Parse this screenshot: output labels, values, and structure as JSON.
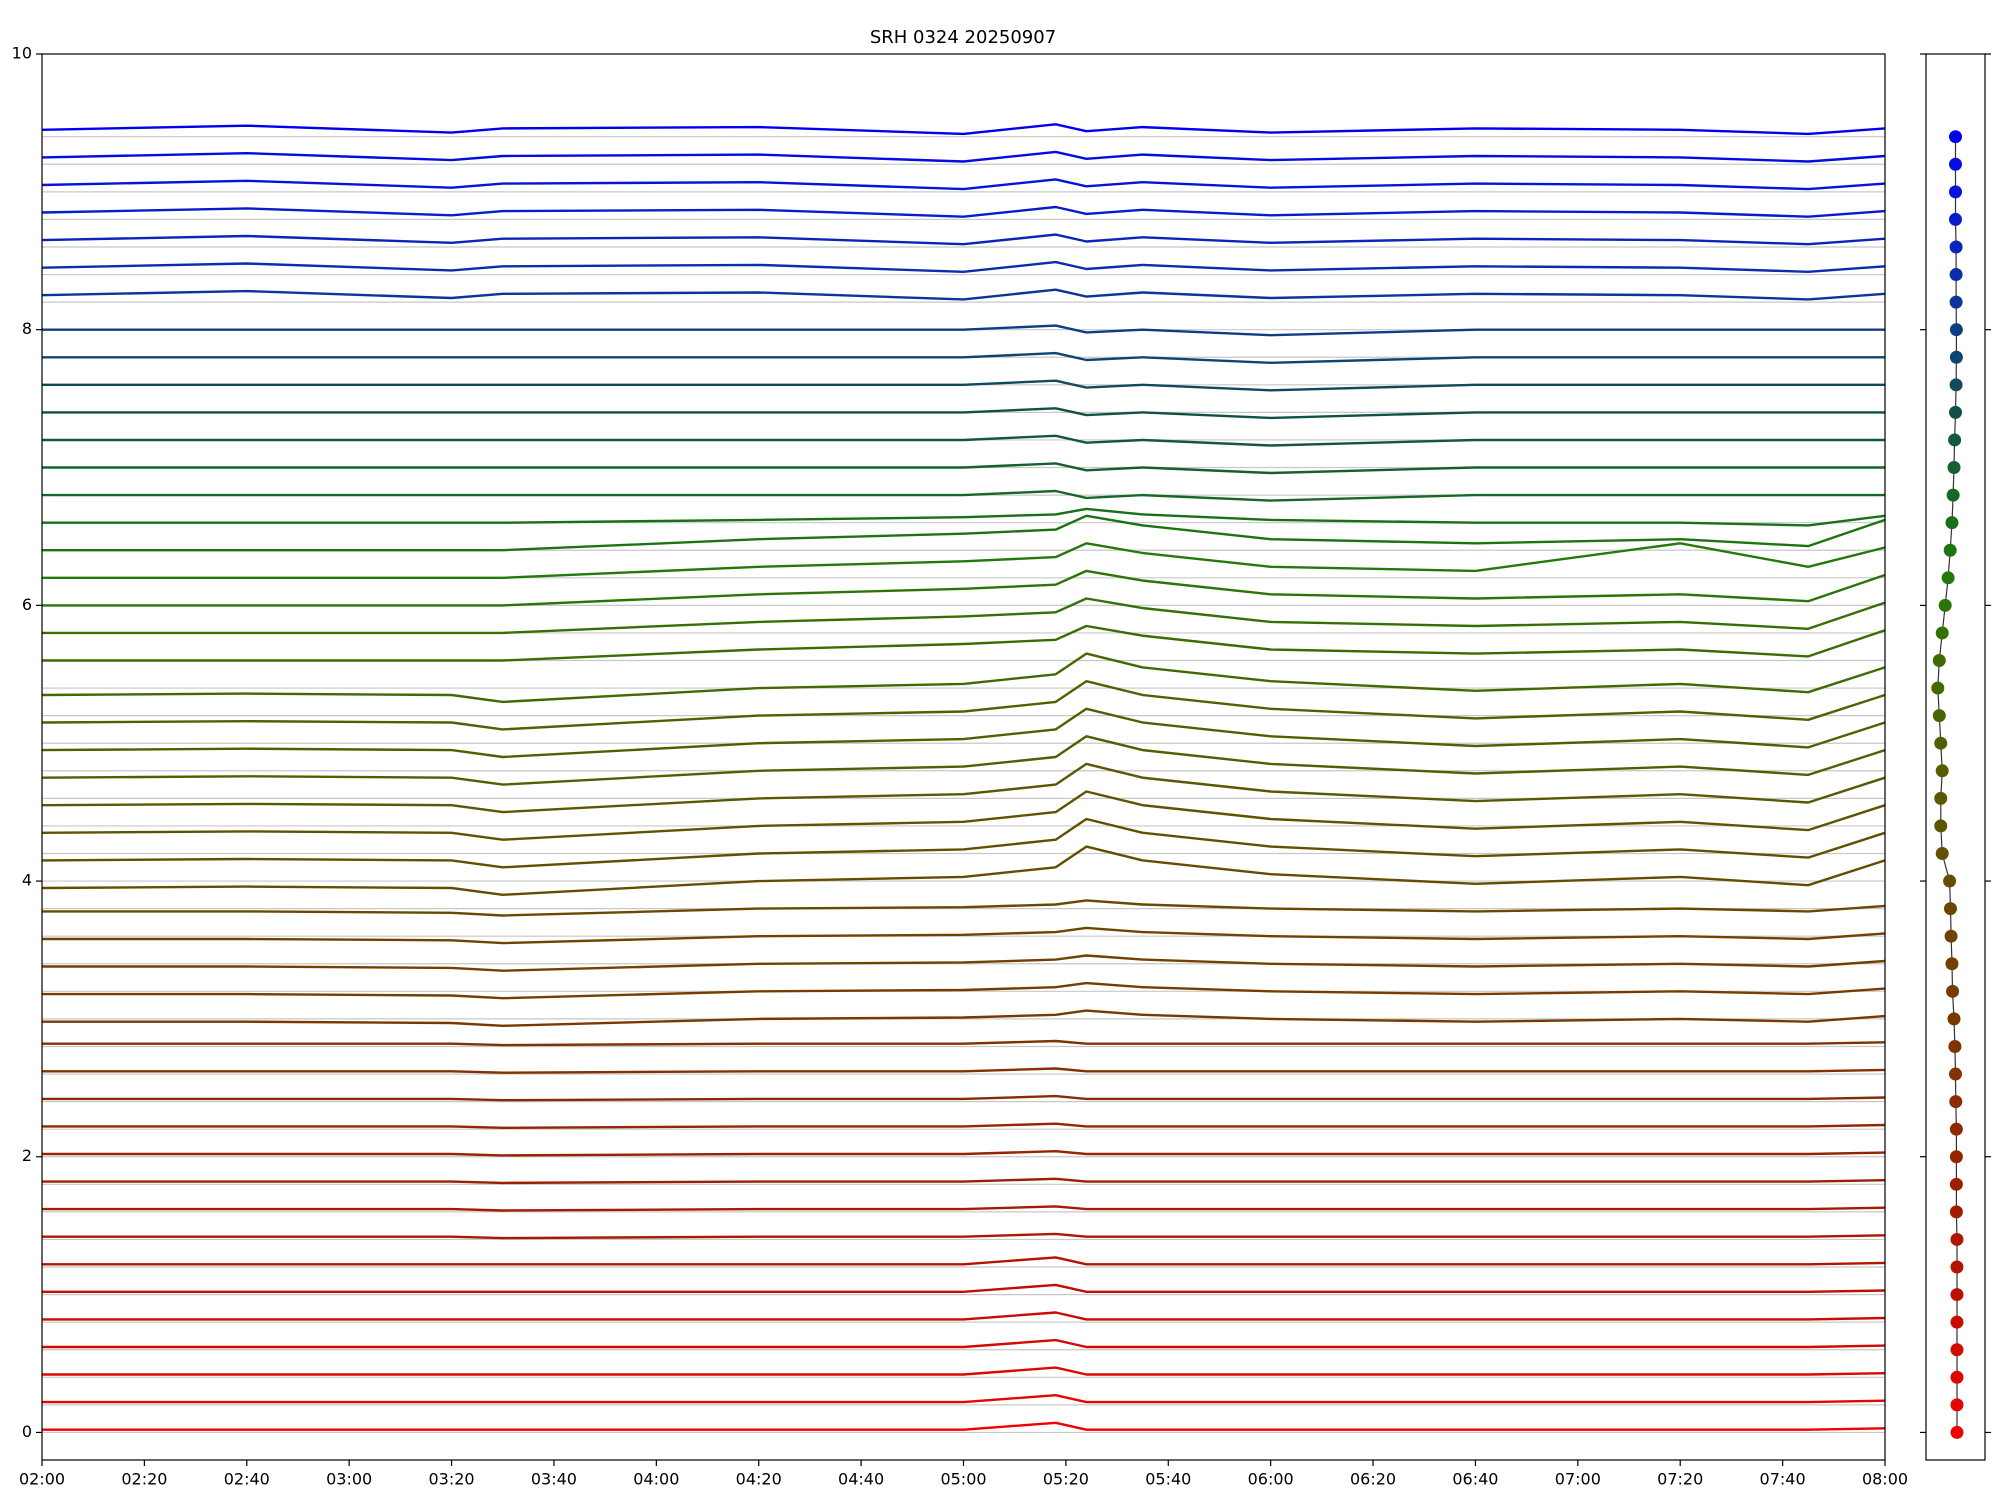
{
  "chart_data": [
    {
      "type": "line",
      "title": "SRH 0324 20250907",
      "x": [
        "02:00",
        "02:40",
        "03:20",
        "03:30",
        "04:20",
        "05:00",
        "05:18",
        "05:24",
        "05:35",
        "06:00",
        "06:40",
        "07:20",
        "07:45",
        "08:00"
      ],
      "xlim": [
        "02:00",
        "08:00"
      ],
      "xticks": [
        "02:00",
        "02:20",
        "02:40",
        "03:00",
        "03:20",
        "03:40",
        "04:00",
        "04:20",
        "04:40",
        "05:00",
        "05:20",
        "05:40",
        "06:00",
        "06:20",
        "06:40",
        "07:00",
        "07:20",
        "07:40",
        "08:00"
      ],
      "ylim": [
        -0.2,
        10
      ],
      "yticks": [
        0,
        2,
        4,
        6,
        8,
        10
      ],
      "series": [
        {
          "color": "#f00000",
          "values": [
            0.02,
            0.02,
            0.02,
            0.02,
            0.02,
            0.02,
            0.07,
            0.02,
            0.02,
            0.02,
            0.02,
            0.02,
            0.02,
            0.03
          ]
        },
        {
          "color": "#e60400",
          "values": [
            0.22,
            0.22,
            0.22,
            0.22,
            0.22,
            0.22,
            0.27,
            0.22,
            0.22,
            0.22,
            0.22,
            0.22,
            0.22,
            0.23
          ]
        },
        {
          "color": "#dc0800",
          "values": [
            0.42,
            0.42,
            0.42,
            0.42,
            0.42,
            0.42,
            0.47,
            0.42,
            0.42,
            0.42,
            0.42,
            0.42,
            0.42,
            0.43
          ]
        },
        {
          "color": "#d20a00",
          "values": [
            0.62,
            0.62,
            0.62,
            0.62,
            0.62,
            0.62,
            0.67,
            0.62,
            0.62,
            0.62,
            0.62,
            0.62,
            0.62,
            0.63
          ]
        },
        {
          "color": "#c80c00",
          "values": [
            0.82,
            0.82,
            0.82,
            0.82,
            0.82,
            0.82,
            0.87,
            0.82,
            0.82,
            0.82,
            0.82,
            0.82,
            0.82,
            0.83
          ]
        },
        {
          "color": "#be1000",
          "values": [
            1.02,
            1.02,
            1.02,
            1.02,
            1.02,
            1.02,
            1.07,
            1.02,
            1.02,
            1.02,
            1.02,
            1.02,
            1.02,
            1.03
          ]
        },
        {
          "color": "#b41400",
          "values": [
            1.22,
            1.22,
            1.22,
            1.22,
            1.22,
            1.22,
            1.27,
            1.22,
            1.22,
            1.22,
            1.22,
            1.22,
            1.22,
            1.23
          ]
        },
        {
          "color": "#ac1800",
          "values": [
            1.42,
            1.42,
            1.42,
            1.41,
            1.42,
            1.42,
            1.44,
            1.42,
            1.42,
            1.42,
            1.42,
            1.42,
            1.42,
            1.43
          ]
        },
        {
          "color": "#a41c00",
          "values": [
            1.62,
            1.62,
            1.62,
            1.61,
            1.62,
            1.62,
            1.64,
            1.62,
            1.62,
            1.62,
            1.62,
            1.62,
            1.62,
            1.63
          ]
        },
        {
          "color": "#9c2000",
          "values": [
            1.82,
            1.82,
            1.82,
            1.81,
            1.82,
            1.82,
            1.84,
            1.82,
            1.82,
            1.82,
            1.82,
            1.82,
            1.82,
            1.83
          ]
        },
        {
          "color": "#962400",
          "values": [
            2.02,
            2.02,
            2.02,
            2.01,
            2.02,
            2.02,
            2.04,
            2.02,
            2.02,
            2.02,
            2.02,
            2.02,
            2.02,
            2.03
          ]
        },
        {
          "color": "#902800",
          "values": [
            2.22,
            2.22,
            2.22,
            2.21,
            2.22,
            2.22,
            2.24,
            2.22,
            2.22,
            2.22,
            2.22,
            2.22,
            2.22,
            2.23
          ]
        },
        {
          "color": "#8a2c00",
          "values": [
            2.42,
            2.42,
            2.42,
            2.41,
            2.42,
            2.42,
            2.44,
            2.42,
            2.42,
            2.42,
            2.42,
            2.42,
            2.42,
            2.43
          ]
        },
        {
          "color": "#843000",
          "values": [
            2.62,
            2.62,
            2.62,
            2.61,
            2.62,
            2.62,
            2.64,
            2.62,
            2.62,
            2.62,
            2.62,
            2.62,
            2.62,
            2.63
          ]
        },
        {
          "color": "#7e3400",
          "values": [
            2.82,
            2.82,
            2.82,
            2.81,
            2.82,
            2.82,
            2.84,
            2.82,
            2.82,
            2.82,
            2.82,
            2.82,
            2.82,
            2.83
          ]
        },
        {
          "color": "#7a3800",
          "values": [
            2.98,
            2.98,
            2.97,
            2.95,
            3.0,
            3.01,
            3.03,
            3.06,
            3.03,
            3.0,
            2.98,
            3.0,
            2.98,
            3.02
          ]
        },
        {
          "color": "#763c00",
          "values": [
            3.18,
            3.18,
            3.17,
            3.15,
            3.2,
            3.21,
            3.23,
            3.26,
            3.23,
            3.2,
            3.18,
            3.2,
            3.18,
            3.22
          ]
        },
        {
          "color": "#724000",
          "values": [
            3.38,
            3.38,
            3.37,
            3.35,
            3.4,
            3.41,
            3.43,
            3.46,
            3.43,
            3.4,
            3.38,
            3.4,
            3.38,
            3.42
          ]
        },
        {
          "color": "#6e4400",
          "values": [
            3.58,
            3.58,
            3.57,
            3.55,
            3.6,
            3.61,
            3.63,
            3.66,
            3.63,
            3.6,
            3.58,
            3.6,
            3.58,
            3.62
          ]
        },
        {
          "color": "#6a4800",
          "values": [
            3.78,
            3.78,
            3.77,
            3.75,
            3.8,
            3.81,
            3.83,
            3.86,
            3.83,
            3.8,
            3.78,
            3.8,
            3.78,
            3.82
          ]
        },
        {
          "color": "#664c00",
          "values": [
            3.95,
            3.96,
            3.95,
            3.9,
            4.0,
            4.03,
            4.1,
            4.25,
            4.15,
            4.05,
            3.98,
            4.03,
            3.97,
            4.15
          ]
        },
        {
          "color": "#625000",
          "values": [
            4.15,
            4.16,
            4.15,
            4.1,
            4.2,
            4.23,
            4.3,
            4.45,
            4.35,
            4.25,
            4.18,
            4.23,
            4.17,
            4.35
          ]
        },
        {
          "color": "#5e5400",
          "values": [
            4.35,
            4.36,
            4.35,
            4.3,
            4.4,
            4.43,
            4.5,
            4.65,
            4.55,
            4.45,
            4.38,
            4.43,
            4.37,
            4.55
          ]
        },
        {
          "color": "#5a5800",
          "values": [
            4.55,
            4.56,
            4.55,
            4.5,
            4.6,
            4.63,
            4.7,
            4.85,
            4.75,
            4.65,
            4.58,
            4.63,
            4.57,
            4.75
          ]
        },
        {
          "color": "#565c00",
          "values": [
            4.75,
            4.76,
            4.75,
            4.7,
            4.8,
            4.83,
            4.9,
            5.05,
            4.95,
            4.85,
            4.78,
            4.83,
            4.77,
            4.95
          ]
        },
        {
          "color": "#506000",
          "values": [
            4.95,
            4.96,
            4.95,
            4.9,
            5.0,
            5.03,
            5.1,
            5.25,
            5.15,
            5.05,
            4.98,
            5.03,
            4.97,
            5.15
          ]
        },
        {
          "color": "#4a6400",
          "values": [
            5.15,
            5.16,
            5.15,
            5.1,
            5.2,
            5.23,
            5.3,
            5.45,
            5.35,
            5.25,
            5.18,
            5.23,
            5.17,
            5.35
          ]
        },
        {
          "color": "#446800",
          "values": [
            5.35,
            5.36,
            5.35,
            5.3,
            5.4,
            5.43,
            5.5,
            5.65,
            5.55,
            5.45,
            5.38,
            5.43,
            5.37,
            5.55
          ]
        },
        {
          "color": "#3c6c00",
          "values": [
            5.6,
            5.6,
            5.6,
            5.6,
            5.68,
            5.72,
            5.75,
            5.85,
            5.78,
            5.68,
            5.65,
            5.68,
            5.63,
            5.82
          ]
        },
        {
          "color": "#347004",
          "values": [
            5.8,
            5.8,
            5.8,
            5.8,
            5.88,
            5.92,
            5.95,
            6.05,
            5.98,
            5.88,
            5.85,
            5.88,
            5.83,
            6.02
          ]
        },
        {
          "color": "#2c7408",
          "values": [
            6.0,
            6.0,
            6.0,
            6.0,
            6.08,
            6.12,
            6.15,
            6.25,
            6.18,
            6.08,
            6.05,
            6.08,
            6.03,
            6.22
          ]
        },
        {
          "color": "#24780c",
          "values": [
            6.2,
            6.2,
            6.2,
            6.2,
            6.28,
            6.32,
            6.35,
            6.45,
            6.38,
            6.28,
            6.25,
            6.45,
            6.28,
            6.42
          ]
        },
        {
          "color": "#1c7410",
          "values": [
            6.4,
            6.4,
            6.4,
            6.4,
            6.48,
            6.52,
            6.55,
            6.65,
            6.58,
            6.48,
            6.45,
            6.48,
            6.43,
            6.62
          ]
        },
        {
          "color": "#187018",
          "values": [
            6.6,
            6.6,
            6.6,
            6.6,
            6.62,
            6.64,
            6.66,
            6.7,
            6.66,
            6.62,
            6.6,
            6.6,
            6.58,
            6.65
          ]
        },
        {
          "color": "#166824",
          "values": [
            6.8,
            6.8,
            6.8,
            6.8,
            6.8,
            6.8,
            6.83,
            6.78,
            6.8,
            6.76,
            6.8,
            6.8,
            6.8,
            6.8
          ]
        },
        {
          "color": "#146030",
          "values": [
            7.0,
            7.0,
            7.0,
            7.0,
            7.0,
            7.0,
            7.03,
            6.98,
            7.0,
            6.96,
            7.0,
            7.0,
            7.0,
            7.0
          ]
        },
        {
          "color": "#12583c",
          "values": [
            7.2,
            7.2,
            7.2,
            7.2,
            7.2,
            7.2,
            7.23,
            7.18,
            7.2,
            7.16,
            7.2,
            7.2,
            7.2,
            7.2
          ]
        },
        {
          "color": "#105048",
          "values": [
            7.4,
            7.4,
            7.4,
            7.4,
            7.4,
            7.4,
            7.43,
            7.38,
            7.4,
            7.36,
            7.4,
            7.4,
            7.4,
            7.4
          ]
        },
        {
          "color": "#104a5c",
          "values": [
            7.6,
            7.6,
            7.6,
            7.6,
            7.6,
            7.6,
            7.63,
            7.58,
            7.6,
            7.56,
            7.6,
            7.6,
            7.6,
            7.6
          ]
        },
        {
          "color": "#104470",
          "values": [
            7.8,
            7.8,
            7.8,
            7.8,
            7.8,
            7.8,
            7.83,
            7.78,
            7.8,
            7.76,
            7.8,
            7.8,
            7.8,
            7.8
          ]
        },
        {
          "color": "#103c84",
          "values": [
            8.0,
            8.0,
            8.0,
            8.0,
            8.0,
            8.0,
            8.03,
            7.98,
            8.0,
            7.96,
            8.0,
            8.0,
            8.0,
            8.0
          ]
        },
        {
          "color": "#0e3498",
          "values": [
            8.25,
            8.28,
            8.23,
            8.26,
            8.27,
            8.22,
            8.29,
            8.24,
            8.27,
            8.23,
            8.26,
            8.25,
            8.22,
            8.26
          ]
        },
        {
          "color": "#0c2cac",
          "values": [
            8.45,
            8.48,
            8.43,
            8.46,
            8.47,
            8.42,
            8.49,
            8.44,
            8.47,
            8.43,
            8.46,
            8.45,
            8.42,
            8.46
          ]
        },
        {
          "color": "#0a24bc",
          "values": [
            8.65,
            8.68,
            8.63,
            8.66,
            8.67,
            8.62,
            8.69,
            8.64,
            8.67,
            8.63,
            8.66,
            8.65,
            8.62,
            8.66
          ]
        },
        {
          "color": "#081ccc",
          "values": [
            8.85,
            8.88,
            8.83,
            8.86,
            8.87,
            8.82,
            8.89,
            8.84,
            8.87,
            8.83,
            8.86,
            8.85,
            8.82,
            8.86
          ]
        },
        {
          "color": "#0614d8",
          "values": [
            9.05,
            9.08,
            9.03,
            9.06,
            9.07,
            9.02,
            9.09,
            9.04,
            9.07,
            9.03,
            9.06,
            9.05,
            9.02,
            9.06
          ]
        },
        {
          "color": "#040ce4",
          "values": [
            9.25,
            9.28,
            9.23,
            9.26,
            9.27,
            9.22,
            9.29,
            9.24,
            9.27,
            9.23,
            9.26,
            9.25,
            9.22,
            9.26
          ]
        },
        {
          "color": "#0000ee",
          "values": [
            9.45,
            9.48,
            9.43,
            9.46,
            9.47,
            9.42,
            9.49,
            9.44,
            9.47,
            9.43,
            9.46,
            9.45,
            9.42,
            9.46
          ]
        }
      ]
    },
    {
      "type": "scatter",
      "x": [
        0.05,
        0.05,
        0.05,
        0.05,
        0.05,
        0.05,
        0.05,
        0.05,
        0.03,
        0.03,
        0.03,
        0.03,
        0.01,
        0.0,
        -0.02,
        -0.05,
        -0.1,
        -0.12,
        -0.15,
        -0.17,
        -0.2,
        -0.45,
        -0.5,
        -0.5,
        -0.45,
        -0.5,
        -0.55,
        -0.6,
        -0.55,
        -0.45,
        -0.35,
        -0.25,
        -0.18,
        -0.12,
        -0.08,
        -0.05,
        -0.03,
        0.0,
        0.02,
        0.03,
        0.03,
        0.02,
        0.02,
        0.02,
        0.0,
        0.0,
        0.0,
        0.0
      ],
      "y": [
        0,
        0.2,
        0.4,
        0.6,
        0.8,
        1.0,
        1.2,
        1.4,
        1.6,
        1.8,
        2.0,
        2.2,
        2.4,
        2.6,
        2.8,
        3.0,
        3.2,
        3.4,
        3.6,
        3.8,
        4.0,
        4.2,
        4.4,
        4.6,
        4.8,
        5.0,
        5.2,
        5.4,
        5.6,
        5.8,
        6.0,
        6.2,
        6.4,
        6.6,
        6.8,
        7.0,
        7.2,
        7.4,
        7.6,
        7.8,
        8.0,
        8.2,
        8.4,
        8.6,
        8.8,
        9.0,
        9.2,
        9.4
      ],
      "xlim": [
        -1,
        1
      ],
      "ylim": [
        -0.2,
        10
      ],
      "yticks": [
        0,
        2,
        4,
        6,
        8,
        10
      ]
    }
  ]
}
